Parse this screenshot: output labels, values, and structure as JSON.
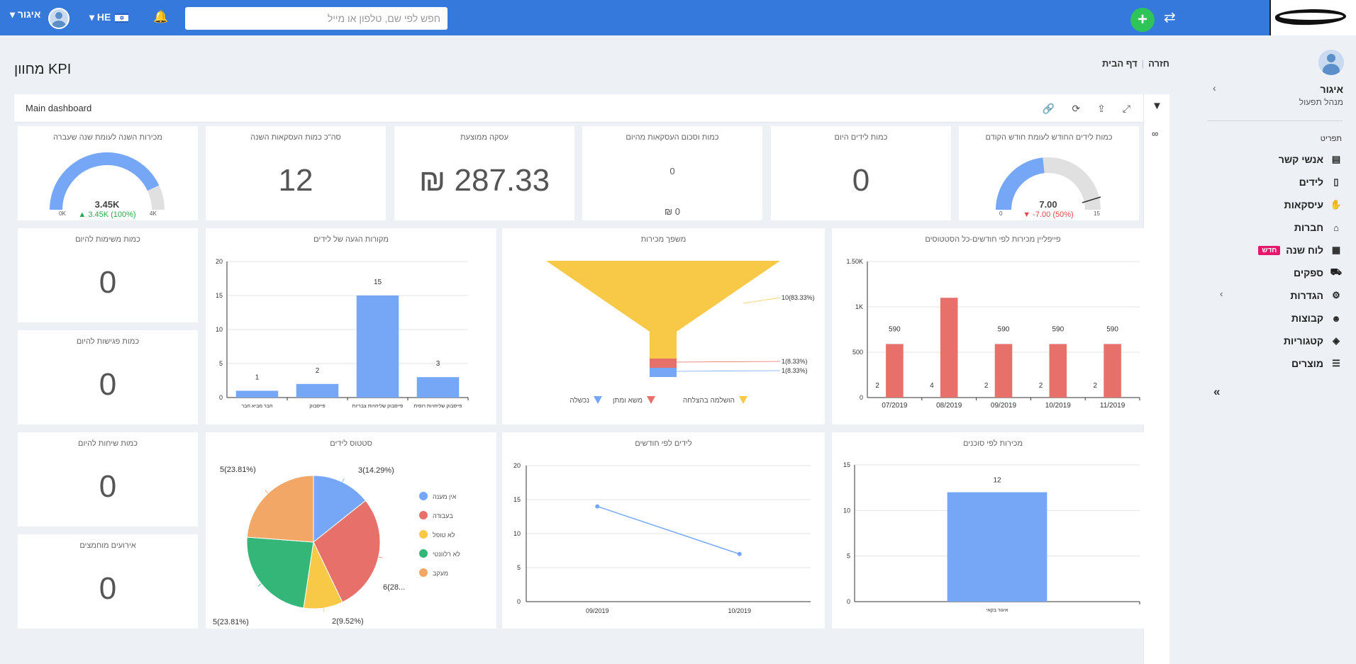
{
  "topbar": {
    "search_placeholder": "חפש לפי שם, טלפון או מייל",
    "add_label": "+",
    "swap_icon": "⇄",
    "bell_icon": "🔔",
    "lang": "HE",
    "user_name": "איגור"
  },
  "sidebar": {
    "user_name": "איגור",
    "user_role": "מנהל תפעול",
    "menu_title": "תפריט",
    "items": [
      {
        "label": "אנשי קשר",
        "icon": "contact-card-icon"
      },
      {
        "label": "לידים",
        "icon": "lead-icon"
      },
      {
        "label": "עיסקאות",
        "icon": "handshake-icon"
      },
      {
        "label": "חברות",
        "icon": "bank-icon"
      },
      {
        "label": "לוח שנה",
        "icon": "calendar-icon",
        "badge": "חדש"
      },
      {
        "label": "ספקים",
        "icon": "truck-icon"
      },
      {
        "label": "הגדרות",
        "icon": "gear-icon"
      },
      {
        "label": "קבוצות",
        "icon": "users-icon"
      },
      {
        "label": "קטגוריות",
        "icon": "box-icon"
      },
      {
        "label": "מוצרים",
        "icon": "list-icon"
      }
    ]
  },
  "page": {
    "title": "מחוון KPI",
    "breadcrumb_home": "דף הבית",
    "breadcrumb_back": "חזרה"
  },
  "dashboard": {
    "title": "Main dashboard"
  },
  "kpis": {
    "gauge_sales": {
      "title": "מכירות השנה לעומת שנה שעברה",
      "value": "3.45K",
      "delta": "▲ 3.45K (100%)",
      "min": "0K",
      "max": "4K",
      "fraction": 0.86
    },
    "deals_count": {
      "title": "סה\"כ כמות העסקאות השנה",
      "value": "12"
    },
    "avg_deal": {
      "title": "עסקה ממוצעת",
      "value": "287.33 ₪"
    },
    "deals_today": {
      "title": "כמות וסכום העסקאות מהיום",
      "count": "0",
      "sum": "0 ₪"
    },
    "leads_today": {
      "title": "כמות לידים היום",
      "value": "0"
    },
    "gauge_leads": {
      "title": "כמות לידים החודש לעומת חודש הקודם",
      "value": "7.00",
      "delta": "▼ -7.00 (50%)",
      "min": "0",
      "max": "15",
      "fraction": 0.467
    },
    "tasks_today": {
      "title": "כמות משימות להיום",
      "value": "0"
    },
    "meetings_today": {
      "title": "כמות פגישות להיום",
      "value": "0"
    },
    "calls_today": {
      "title": "כמות שיחות להיום",
      "value": "0"
    },
    "events_missed": {
      "title": "אירועים מוחמצים",
      "value": "0"
    }
  },
  "chart_data": [
    {
      "id": "lead_sources",
      "type": "bar",
      "title": "מקורות הגעה של לידים",
      "categories": [
        "חבר מביא חבר",
        "פייסבוק",
        "פייסבוק שליחויות צבריות",
        "פייסבוק שליחויות רוסית"
      ],
      "values": [
        1,
        2,
        15,
        3
      ],
      "yticks": [
        "0",
        "5",
        "10",
        "15",
        "20"
      ],
      "ylim": [
        0,
        20
      ],
      "color": "#76a7f7"
    },
    {
      "id": "sales_funnel",
      "type": "funnel",
      "title": "משפך מכירות",
      "labels": [
        "10(83.33%)",
        "1(8.33%)",
        "1(8.33%)"
      ],
      "values": [
        10,
        1,
        1
      ],
      "colors": [
        "#f8c947",
        "#e7706a",
        "#76a7f7"
      ],
      "legend": [
        "הושלמה בהצלחה",
        "משא ומתן",
        "נכשלה"
      ]
    },
    {
      "id": "pipeline",
      "type": "bar",
      "title": "פייפליין מכירות לפי חודשים-כל הסטטוסים",
      "categories": [
        "07/2019",
        "08/2019",
        "09/2019",
        "10/2019",
        "11/2019"
      ],
      "values": [
        590,
        1100,
        590,
        590,
        590
      ],
      "value_labels": [
        "590",
        "",
        "590",
        "590",
        "590"
      ],
      "count_labels": [
        "2",
        "4",
        "2",
        "2",
        "2"
      ],
      "yticks": [
        "0",
        "500",
        "1K",
        "1.50K"
      ],
      "ylim": [
        0,
        1500
      ],
      "color": "#e7706a"
    },
    {
      "id": "lead_status",
      "type": "pie",
      "title": "סטטוס לידים",
      "labels": [
        "3(14.29%)",
        "6(28...",
        "2(9.52%)",
        "5(23.81%)",
        "5(23.81%)"
      ],
      "values": [
        3,
        6,
        2,
        5,
        5
      ],
      "colors": [
        "#76a7f7",
        "#e7706a",
        "#f8c947",
        "#33b677",
        "#f2a766"
      ],
      "legend": [
        "אין מענה",
        "בעבודה",
        "לא טופל",
        "לא רלוונטי",
        "מעקב"
      ]
    },
    {
      "id": "leads_by_month",
      "type": "line",
      "title": "לידים לפי חודשים",
      "x": [
        "09/2019",
        "10/2019"
      ],
      "values": [
        14,
        7
      ],
      "yticks": [
        "0",
        "5",
        "10",
        "15",
        "20"
      ],
      "ylim": [
        0,
        20
      ],
      "color": "#76a7f7"
    },
    {
      "id": "sales_by_agent",
      "type": "bar",
      "title": "מכירות לפי סוכנים",
      "categories": [
        "איגור בקאי"
      ],
      "values": [
        12
      ],
      "yticks": [
        "0",
        "5",
        "10",
        "15"
      ],
      "ylim": [
        0,
        15
      ],
      "color": "#76a7f7"
    }
  ]
}
